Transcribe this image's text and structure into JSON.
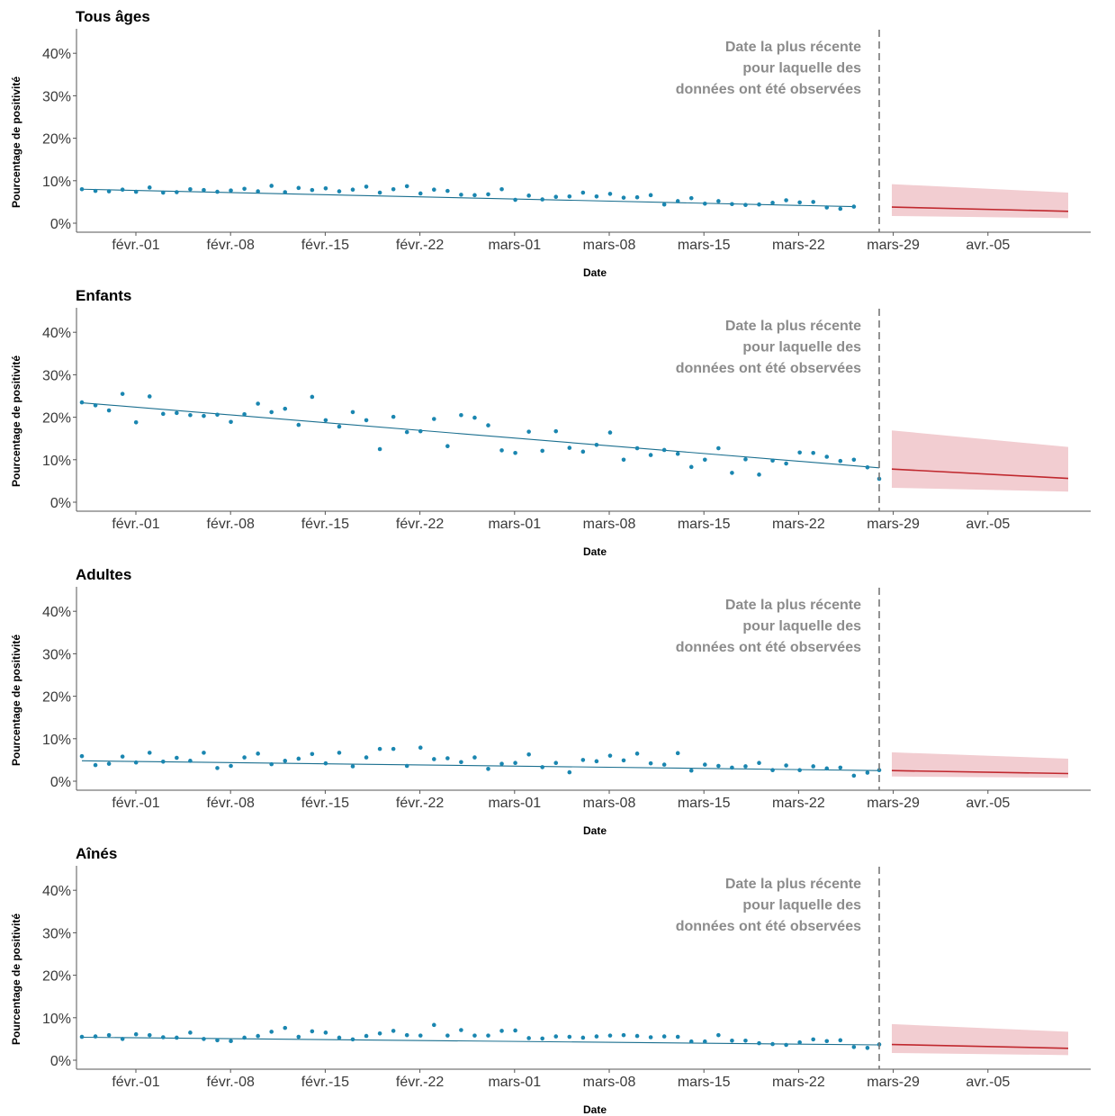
{
  "chart_data": [
    {
      "type": "line",
      "title": "Tous âges",
      "xlabel": "Date",
      "ylabel": "Pourcentage de positivité",
      "x_tick_labels": [
        "févr.-01",
        "févr.-08",
        "févr.-15",
        "févr.-22",
        "mars-01",
        "mars-08",
        "mars-15",
        "mars-22",
        "mars-29",
        "avr.-05"
      ],
      "y_tick_labels": [
        "0%",
        "10%",
        "20%",
        "30%",
        "40%"
      ],
      "ylim": [
        0,
        45
      ],
      "vline_annotation": [
        "Date la plus récente",
        "pour laquelle des",
        "données ont été observées"
      ],
      "observed_points": [
        8.0,
        7.6,
        7.5,
        7.9,
        7.4,
        8.4,
        7.2,
        7.3,
        8.0,
        7.8,
        7.4,
        7.7,
        8.1,
        7.5,
        8.8,
        7.3,
        8.3,
        7.8,
        8.2,
        7.5,
        7.9,
        8.6,
        7.2,
        8.0,
        8.7,
        7.0,
        7.9,
        7.6,
        6.7,
        6.6,
        6.8,
        8.0,
        5.5,
        6.5,
        5.6,
        6.2,
        6.3,
        7.2,
        6.3,
        6.9,
        6.0,
        6.1,
        6.6,
        4.4,
        5.2,
        5.9,
        4.6,
        5.2,
        4.5,
        4.3,
        4.4,
        4.8,
        5.4,
        4.9,
        5.0,
        3.7,
        3.4,
        3.9
      ],
      "trend_start": 8.0,
      "trend_end": 3.9,
      "forecast": {
        "start": 3.8,
        "end": 2.8,
        "lower_start": 1.7,
        "lower_end": 1.2,
        "upper_start": 9.2,
        "upper_end": 7.2
      }
    },
    {
      "type": "line",
      "title": "Enfants",
      "xlabel": "Date",
      "ylabel": "Pourcentage de positivité",
      "x_tick_labels": [
        "févr.-01",
        "févr.-08",
        "févr.-15",
        "févr.-22",
        "mars-01",
        "mars-08",
        "mars-15",
        "mars-22",
        "mars-29",
        "avr.-05"
      ],
      "y_tick_labels": [
        "0%",
        "10%",
        "20%",
        "30%",
        "40%"
      ],
      "ylim": [
        0,
        45
      ],
      "vline_annotation": [
        "Date la plus récente",
        "pour laquelle des",
        "données ont été observées"
      ],
      "observed_points": [
        23.5,
        22.8,
        21.6,
        25.5,
        18.8,
        24.9,
        20.8,
        21.0,
        20.5,
        20.3,
        20.6,
        18.9,
        20.7,
        23.2,
        21.2,
        22.0,
        18.2,
        24.8,
        19.3,
        17.8,
        21.2,
        19.3,
        12.5,
        20.1,
        16.5,
        16.7,
        19.6,
        13.2,
        20.5,
        19.9,
        18.1,
        12.2,
        11.6,
        16.6,
        12.1,
        16.7,
        12.8,
        11.9,
        13.5,
        16.4,
        10.0,
        12.7,
        11.1,
        12.3,
        11.4,
        8.3,
        10.0,
        12.7,
        6.9,
        10.1,
        6.5,
        9.8,
        9.1,
        11.7,
        11.6,
        10.7,
        9.7,
        10.0,
        8.2,
        5.5
      ],
      "trend_start": 23.4,
      "trend_end": 8.1,
      "forecast": {
        "start": 7.8,
        "end": 5.6,
        "lower_start": 3.4,
        "lower_end": 2.5,
        "upper_start": 16.9,
        "upper_end": 13.0
      }
    },
    {
      "type": "line",
      "title": "Adultes",
      "xlabel": "Date",
      "ylabel": "Pourcentage de positivité",
      "x_tick_labels": [
        "févr.-01",
        "févr.-08",
        "févr.-15",
        "févr.-22",
        "mars-01",
        "mars-08",
        "mars-15",
        "mars-22",
        "mars-29",
        "avr.-05"
      ],
      "y_tick_labels": [
        "0%",
        "10%",
        "20%",
        "30%",
        "40%"
      ],
      "ylim": [
        0,
        45
      ],
      "vline_annotation": [
        "Date la plus récente",
        "pour laquelle des",
        "données ont été observées"
      ],
      "observed_points": [
        5.9,
        3.8,
        4.1,
        5.8,
        4.4,
        6.7,
        4.6,
        5.5,
        4.8,
        6.7,
        3.1,
        3.6,
        5.6,
        6.5,
        4.0,
        4.8,
        5.3,
        6.4,
        4.2,
        6.7,
        3.5,
        5.6,
        7.6,
        7.6,
        3.6,
        7.9,
        5.2,
        5.4,
        4.5,
        5.6,
        2.9,
        4.1,
        4.3,
        6.3,
        3.3,
        4.3,
        2.1,
        5.0,
        4.7,
        6.0,
        4.9,
        6.5,
        4.2,
        3.9,
        6.6,
        2.5,
        3.9,
        3.6,
        3.2,
        3.5,
        4.3,
        2.6,
        3.7,
        2.6,
        3.5,
        3.0,
        3.2,
        1.3,
        2.0,
        2.6
      ],
      "trend_start": 4.8,
      "trend_end": 2.5,
      "forecast": {
        "start": 2.5,
        "end": 1.8,
        "lower_start": 1.1,
        "lower_end": 0.8,
        "upper_start": 6.8,
        "upper_end": 5.3
      }
    },
    {
      "type": "line",
      "title": "Aînés",
      "xlabel": "Date",
      "ylabel": "Pourcentage de positivité",
      "x_tick_labels": [
        "févr.-01",
        "févr.-08",
        "févr.-15",
        "févr.-22",
        "mars-01",
        "mars-08",
        "mars-15",
        "mars-22",
        "mars-29",
        "avr.-05"
      ],
      "y_tick_labels": [
        "0%",
        "10%",
        "20%",
        "30%",
        "40%"
      ],
      "ylim": [
        0,
        45
      ],
      "vline_annotation": [
        "Date la plus récente",
        "pour laquelle des",
        "données ont été observées"
      ],
      "observed_points": [
        5.5,
        5.6,
        5.9,
        5.0,
        6.1,
        5.9,
        5.4,
        5.3,
        6.5,
        5.0,
        4.7,
        4.5,
        5.3,
        5.7,
        6.7,
        7.6,
        5.5,
        6.8,
        6.5,
        5.3,
        4.9,
        5.7,
        6.3,
        6.9,
        5.9,
        5.8,
        8.3,
        5.8,
        7.1,
        5.8,
        5.8,
        6.9,
        7.0,
        5.2,
        5.1,
        5.6,
        5.5,
        5.3,
        5.6,
        5.8,
        5.9,
        5.7,
        5.4,
        5.6,
        5.5,
        4.4,
        4.4,
        5.9,
        4.6,
        4.6,
        4.0,
        3.8,
        3.6,
        4.2,
        4.9,
        4.5,
        4.7,
        3.1,
        2.9,
        3.7
      ],
      "trend_start": 5.4,
      "trend_end": 3.6,
      "forecast": {
        "start": 3.7,
        "end": 2.8,
        "lower_start": 1.7,
        "lower_end": 1.2,
        "upper_start": 8.5,
        "upper_end": 6.7
      }
    }
  ]
}
